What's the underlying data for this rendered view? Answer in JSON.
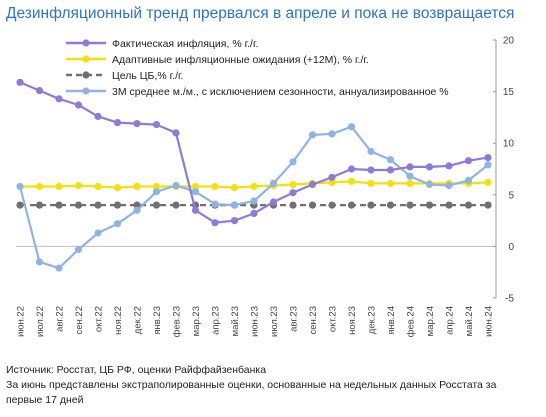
{
  "title": "Дезинфляционный тренд прервался в апреле и пока не возвращается",
  "notes": [
    "Источник: Росстат, ЦБ РФ, оценки Райффайзенбанка",
    "За июнь представлены экстраполированные оценки, основанные на недельных данных Росстата за",
    "первые 17 дней"
  ],
  "chart_data": {
    "type": "line",
    "categories": [
      "июн.22",
      "июл.22",
      "авг.22",
      "сен.22",
      "окт.22",
      "ноя.22",
      "дек.22",
      "янв.23",
      "фев.23",
      "мар.23",
      "апр.23",
      "май.23",
      "июн.23",
      "июл.23",
      "авг.23",
      "сен.23",
      "окт.23",
      "ноя.23",
      "дек.23",
      "янв.24",
      "фев.24",
      "мар.24",
      "апр.24",
      "май.24",
      "июн.24"
    ],
    "ylim": [
      -5,
      20
    ],
    "yticks": [
      -5,
      0,
      5,
      10,
      15,
      20
    ],
    "y_axis_side": "right",
    "grid": false,
    "legend_position": "top-left",
    "series": [
      {
        "name": "Фактическая инфляция, % г./г.",
        "color": "#8e7bd8",
        "style": "solid",
        "marker": true,
        "values": [
          15.9,
          15.1,
          14.3,
          13.7,
          12.6,
          12.0,
          11.9,
          11.8,
          11.0,
          3.5,
          2.3,
          2.5,
          3.2,
          4.3,
          5.2,
          6.0,
          6.7,
          7.5,
          7.4,
          7.4,
          7.7,
          7.7,
          7.8,
          8.3,
          8.6
        ]
      },
      {
        "name": "Адаптивные инфляционные ожидания (+12М), % г./г.",
        "color": "#f2e010",
        "style": "solid",
        "marker": true,
        "values": [
          5.8,
          5.8,
          5.8,
          5.9,
          5.8,
          5.7,
          5.8,
          5.8,
          5.8,
          5.8,
          5.8,
          5.7,
          5.8,
          5.9,
          6.0,
          6.1,
          6.2,
          6.3,
          6.1,
          6.1,
          6.1,
          6.1,
          6.1,
          6.1,
          6.2
        ]
      },
      {
        "name": "Цель ЦБ,% г./г.",
        "color": "#707070",
        "style": "dashed",
        "marker": true,
        "values": [
          4,
          4,
          4,
          4,
          4,
          4,
          4,
          4,
          4,
          4,
          4,
          4,
          4,
          4,
          4,
          4,
          4,
          4,
          4,
          4,
          4,
          4,
          4,
          4,
          4
        ]
      },
      {
        "name": "3М среднее м./м., с исключением сезонности, аннуализированное %",
        "color": "#8fb4e3",
        "style": "solid",
        "marker": true,
        "values": [
          5.8,
          -1.5,
          -2.1,
          -0.3,
          1.3,
          2.2,
          3.5,
          5.3,
          5.9,
          5.3,
          4.1,
          4.0,
          4.4,
          6.1,
          8.2,
          10.8,
          10.9,
          11.6,
          9.2,
          8.4,
          6.8,
          6.0,
          5.9,
          6.4,
          7.9
        ]
      }
    ]
  }
}
